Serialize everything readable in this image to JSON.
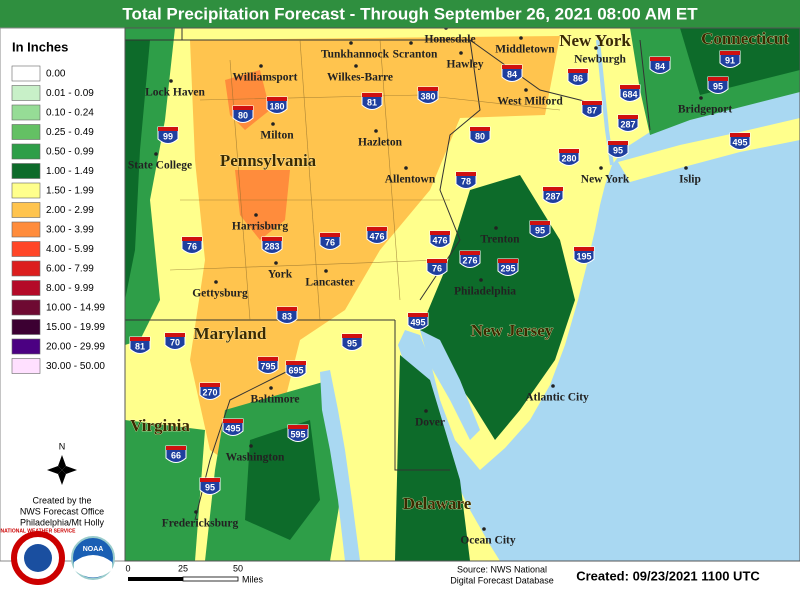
{
  "title": "Total Precipitation Forecast - Through September 26, 2021 08:00 AM ET",
  "legend": {
    "title": "In Inches",
    "items": [
      {
        "label": "0.00",
        "color": "#ffffff"
      },
      {
        "label": "0.01 - 0.09",
        "color": "#c8f0c8"
      },
      {
        "label": "0.10 - 0.24",
        "color": "#96dc96"
      },
      {
        "label": "0.25 - 0.49",
        "color": "#64c064"
      },
      {
        "label": "0.50 - 0.99",
        "color": "#2e9e48"
      },
      {
        "label": "1.00 - 1.49",
        "color": "#0d6b2a"
      },
      {
        "label": "1.50 - 1.99",
        "color": "#ffff8c"
      },
      {
        "label": "2.00 - 2.99",
        "color": "#ffc44e"
      },
      {
        "label": "3.00 - 3.99",
        "color": "#ff8c3c"
      },
      {
        "label": "4.00 - 5.99",
        "color": "#ff4628"
      },
      {
        "label": "6.00 - 7.99",
        "color": "#dc1e1e"
      },
      {
        "label": "8.00 - 9.99",
        "color": "#b40a28"
      },
      {
        "label": "10.00 - 14.99",
        "color": "#6e0a32"
      },
      {
        "label": "15.00 - 19.99",
        "color": "#3c0032"
      },
      {
        "label": "20.00 - 29.99",
        "color": "#4b0082"
      },
      {
        "label": "30.00 - 50.00",
        "color": "#ffe0ff"
      }
    ]
  },
  "compass": "N",
  "credits": [
    "Created by the",
    "NWS Forecast Office",
    "Philadelphia/Mt Holly"
  ],
  "logos": [
    "NATIONAL WEATHER SERVICE",
    "NOAA"
  ],
  "scale": {
    "ticks": [
      "0",
      "25",
      "50"
    ],
    "unit": "Miles"
  },
  "source": [
    "Source: NWS National",
    "Digital Forecast Database"
  ],
  "created": "Created: 09/23/2021 1100 UTC",
  "map": {
    "states": [
      "Pennsylvania",
      "New York",
      "Connecticut",
      "Maryland",
      "New Jersey",
      "Virginia",
      "Delaware"
    ],
    "labels": [
      "Honesdale",
      "Tunkhannock",
      "Scranton",
      "Middletown",
      "Newburgh",
      "Lock Haven",
      "Williamsport",
      "Wilkes-Barre",
      "Hawley",
      "West Milford",
      "Bridgeport",
      "Milton",
      "Hazleton",
      "State College",
      "Allentown",
      "New York",
      "Islip",
      "Harrisburg",
      "Trenton",
      "York",
      "Lancaster",
      "Philadelphia",
      "Gettysburg",
      "Baltimore",
      "Atlantic City",
      "Dover",
      "Washington",
      "Fredericksburg",
      "Ocean City"
    ],
    "interstates": [
      "84",
      "84",
      "91",
      "86",
      "380",
      "180",
      "81",
      "80",
      "80",
      "99",
      "684",
      "87",
      "287",
      "287",
      "95",
      "95",
      "95",
      "95",
      "95",
      "495",
      "495",
      "495",
      "280",
      "78",
      "476",
      "476",
      "283",
      "76",
      "76",
      "76",
      "276",
      "295",
      "195",
      "83",
      "70",
      "81",
      "795",
      "695",
      "270",
      "595",
      "66"
    ]
  }
}
